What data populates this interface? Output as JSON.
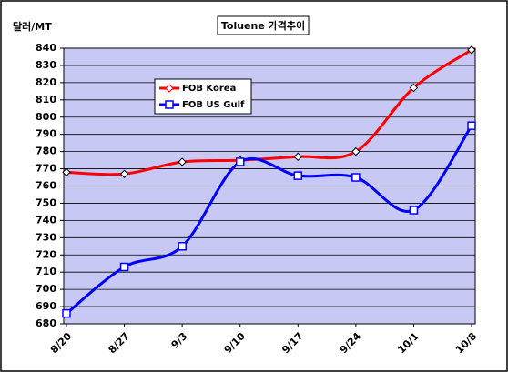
{
  "chart_data": {
    "type": "line",
    "title": "Toluene 가격추이",
    "y_label": "달러/MT",
    "categories": [
      "8/20",
      "8/27",
      "9/3",
      "9/10",
      "9/17",
      "9/24",
      "10/1",
      "10/8"
    ],
    "series": [
      {
        "name": "FOB Korea",
        "color": "#ff0000",
        "values": [
          768,
          767,
          774,
          775,
          777,
          780,
          817,
          839
        ]
      },
      {
        "name": "FOB US Gulf",
        "color": "#0000ff",
        "values": [
          686,
          713,
          725,
          774,
          766,
          765,
          746,
          795
        ]
      }
    ],
    "ylim": [
      680,
      840
    ],
    "yticks": [
      680,
      690,
      700,
      710,
      720,
      730,
      740,
      750,
      760,
      770,
      780,
      790,
      800,
      810,
      820,
      830,
      840
    ],
    "grid": true,
    "smooth": true,
    "legend": "upper left"
  }
}
